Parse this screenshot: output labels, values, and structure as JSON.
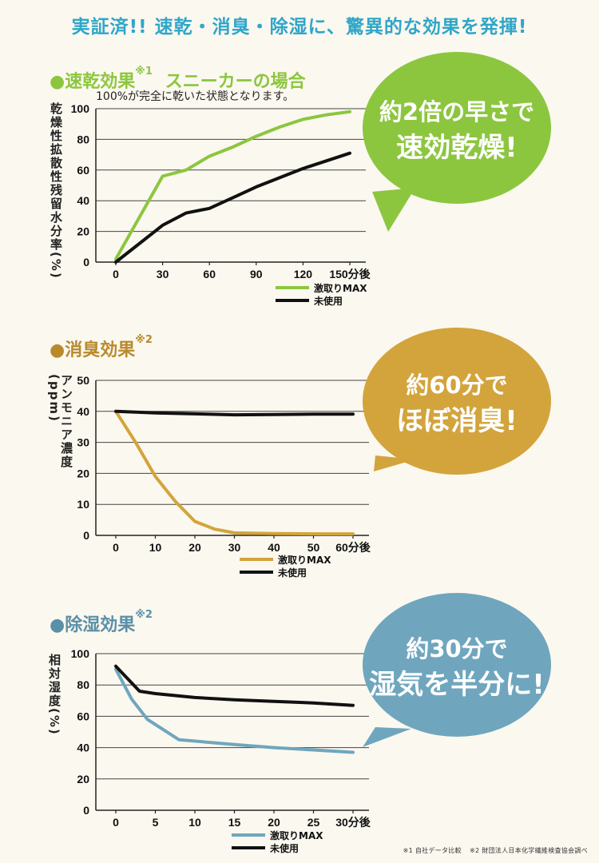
{
  "headline": "実証済!! 速乾・消臭・除湿に、驚異的な効果を発揮!",
  "sections": [
    {
      "title": "速乾効果",
      "note": "※1",
      "suffix": "スニーカーの場合",
      "subnote": "100%が完全に乾いた状態となります。",
      "ylabel": "乾燥性拡散性残留水分率(%)",
      "bubble": [
        "約2倍の早さで",
        "速効乾燥!"
      ],
      "color": "#8cc63f"
    },
    {
      "title": "消臭効果",
      "note": "※2",
      "ylabel": "アンモニア濃度(ppm)",
      "bubble": [
        "約60分で",
        "ほぼ消臭!"
      ],
      "color": "#d3a43c"
    },
    {
      "title": "除湿効果",
      "note": "※2",
      "ylabel": "相対湿度(%)",
      "bubble": [
        "約30分で",
        "湿気を半分に!"
      ],
      "color": "#6fa6be"
    }
  ],
  "chart_data": [
    {
      "type": "line",
      "title": "速乾効果 スニーカーの場合",
      "xlabel": "",
      "ylabel": "乾燥性拡散性残留水分率(%)",
      "x_ticks": [
        "0",
        "30",
        "60",
        "90",
        "120",
        "150分後"
      ],
      "y_ticks": [
        "0",
        "20",
        "40",
        "60",
        "80",
        "100"
      ],
      "xlim": [
        0,
        150
      ],
      "ylim": [
        0,
        100
      ],
      "series": [
        {
          "name": "激取りMAX",
          "color": "#8cc63f",
          "x": [
            0,
            30,
            45,
            60,
            75,
            90,
            105,
            120,
            135,
            150
          ],
          "y": [
            2,
            56,
            60,
            69,
            75,
            82,
            88,
            93,
            96,
            98
          ]
        },
        {
          "name": "未使用",
          "color": "#111111",
          "x": [
            0,
            15,
            30,
            45,
            60,
            75,
            90,
            105,
            120,
            135,
            150
          ],
          "y": [
            0,
            12,
            24,
            32,
            35,
            42,
            49,
            55,
            61,
            66,
            71
          ]
        }
      ]
    },
    {
      "type": "line",
      "title": "消臭効果",
      "xlabel": "",
      "ylabel": "アンモニア濃度(ppm)",
      "x_ticks": [
        "0",
        "10",
        "20",
        "30",
        "40",
        "50",
        "60分後"
      ],
      "y_ticks": [
        "0",
        "10",
        "20",
        "30",
        "40",
        "50"
      ],
      "xlim": [
        0,
        60
      ],
      "ylim": [
        0,
        50
      ],
      "series": [
        {
          "name": "激取りMAX",
          "color": "#d3a43c",
          "x": [
            0,
            5,
            10,
            15,
            20,
            25,
            30,
            40,
            50,
            60
          ],
          "y": [
            40,
            30,
            19,
            11,
            4.5,
            2,
            0.8,
            0.6,
            0.5,
            0.5
          ]
        },
        {
          "name": "未使用",
          "color": "#111111",
          "x": [
            0,
            10,
            20,
            30,
            40,
            50,
            60
          ],
          "y": [
            40,
            39.5,
            39.2,
            38.9,
            39,
            39.1,
            39.1
          ]
        }
      ]
    },
    {
      "type": "line",
      "title": "除湿効果",
      "xlabel": "",
      "ylabel": "相対湿度(%)",
      "x_ticks": [
        "0",
        "5",
        "10",
        "15",
        "20",
        "25",
        "30分後"
      ],
      "y_ticks": [
        "0",
        "20",
        "40",
        "60",
        "80",
        "100"
      ],
      "xlim": [
        0,
        30
      ],
      "ylim": [
        0,
        100
      ],
      "series": [
        {
          "name": "激取りMAX",
          "color": "#6fa6be",
          "x": [
            0,
            2,
            4,
            8,
            15,
            20,
            25,
            30
          ],
          "y": [
            90,
            71,
            58,
            45,
            42,
            40,
            38.5,
            37
          ]
        },
        {
          "name": "未使用",
          "color": "#111111",
          "x": [
            0,
            3,
            5,
            10,
            15,
            20,
            25,
            30
          ],
          "y": [
            92,
            76,
            74.5,
            72,
            70.5,
            69.5,
            68.5,
            67
          ]
        }
      ]
    }
  ],
  "footnote": [
    "※1 自社データ比較",
    "※2 財団法人日本化学繊維検査協会調べ"
  ]
}
